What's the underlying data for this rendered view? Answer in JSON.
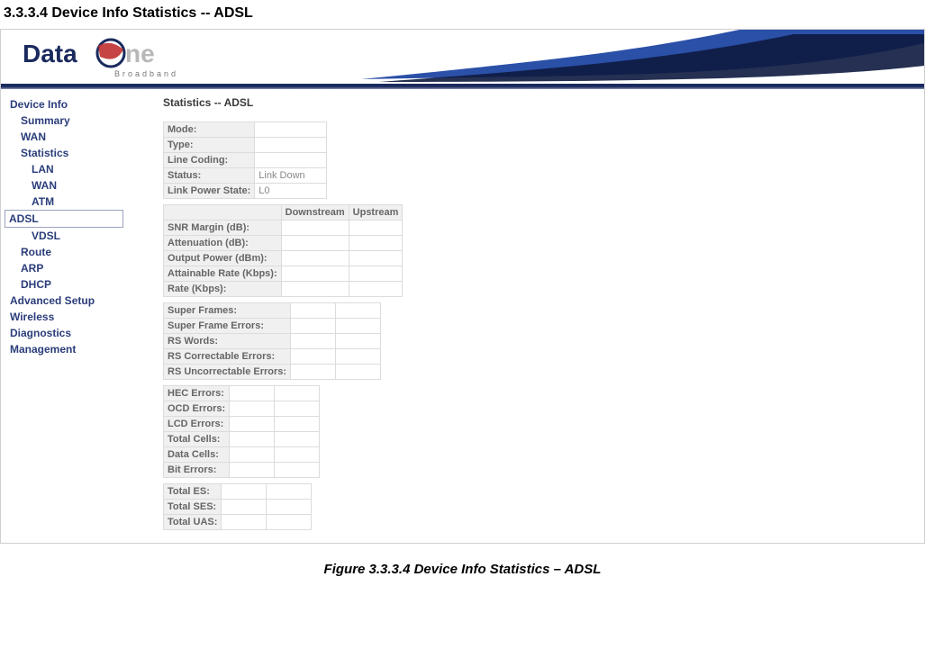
{
  "doc": {
    "heading": "3.3.3.4 Device Info Statistics -- ADSL",
    "figure_caption": "Figure 3.3.3.4 Device Info Statistics – ADSL"
  },
  "logo": {
    "text_dark": "Data",
    "text_light": "ne",
    "subtitle": "Broadband"
  },
  "sidebar": {
    "items": [
      {
        "label": "Device Info",
        "level": 1,
        "active": false
      },
      {
        "label": "Summary",
        "level": 2,
        "active": false
      },
      {
        "label": "WAN",
        "level": 2,
        "active": false
      },
      {
        "label": "Statistics",
        "level": 2,
        "active": false
      },
      {
        "label": "LAN",
        "level": 3,
        "active": false
      },
      {
        "label": "WAN",
        "level": 3,
        "active": false
      },
      {
        "label": "ATM",
        "level": 3,
        "active": false
      },
      {
        "label": "ADSL",
        "level": 3,
        "active": true
      },
      {
        "label": "VDSL",
        "level": 3,
        "active": false
      },
      {
        "label": "Route",
        "level": 2,
        "active": false
      },
      {
        "label": "ARP",
        "level": 2,
        "active": false
      },
      {
        "label": "DHCP",
        "level": 2,
        "active": false
      },
      {
        "label": "Advanced Setup",
        "level": 1,
        "active": false
      },
      {
        "label": "Wireless",
        "level": 1,
        "active": false
      },
      {
        "label": "Diagnostics",
        "level": 1,
        "active": false
      },
      {
        "label": "Management",
        "level": 1,
        "active": false
      }
    ]
  },
  "content": {
    "title": "Statistics -- ADSL",
    "table1": {
      "rows": [
        {
          "label": "Mode:",
          "value": ""
        },
        {
          "label": "Type:",
          "value": ""
        },
        {
          "label": "Line Coding:",
          "value": ""
        },
        {
          "label": "Status:",
          "value": "Link Down"
        },
        {
          "label": "Link Power State:",
          "value": "L0"
        }
      ]
    },
    "table2": {
      "col_headers": [
        "",
        "Downstream",
        "Upstream"
      ],
      "rows": [
        {
          "label": "SNR Margin (dB):",
          "down": "",
          "up": ""
        },
        {
          "label": "Attenuation (dB):",
          "down": "",
          "up": ""
        },
        {
          "label": "Output Power (dBm):",
          "down": "",
          "up": ""
        },
        {
          "label": "Attainable Rate (Kbps):",
          "down": "",
          "up": ""
        },
        {
          "label": "Rate (Kbps):",
          "down": "",
          "up": ""
        }
      ]
    },
    "table3": {
      "rows": [
        {
          "label": "Super Frames:",
          "down": "",
          "up": ""
        },
        {
          "label": "Super Frame Errors:",
          "down": "",
          "up": ""
        },
        {
          "label": "RS Words:",
          "down": "",
          "up": ""
        },
        {
          "label": "RS Correctable Errors:",
          "down": "",
          "up": ""
        },
        {
          "label": "RS Uncorrectable Errors:",
          "down": "",
          "up": ""
        }
      ]
    },
    "table4": {
      "rows": [
        {
          "label": "HEC Errors:",
          "down": "",
          "up": ""
        },
        {
          "label": "OCD Errors:",
          "down": "",
          "up": ""
        },
        {
          "label": "LCD Errors:",
          "down": "",
          "up": ""
        },
        {
          "label": "Total Cells:",
          "down": "",
          "up": ""
        },
        {
          "label": "Data Cells:",
          "down": "",
          "up": ""
        },
        {
          "label": "Bit Errors:",
          "down": "",
          "up": ""
        }
      ]
    },
    "table5": {
      "rows": [
        {
          "label": "Total ES:",
          "down": "",
          "up": ""
        },
        {
          "label": "Total SES:",
          "down": "",
          "up": ""
        },
        {
          "label": "Total UAS:",
          "down": "",
          "up": ""
        }
      ]
    }
  }
}
